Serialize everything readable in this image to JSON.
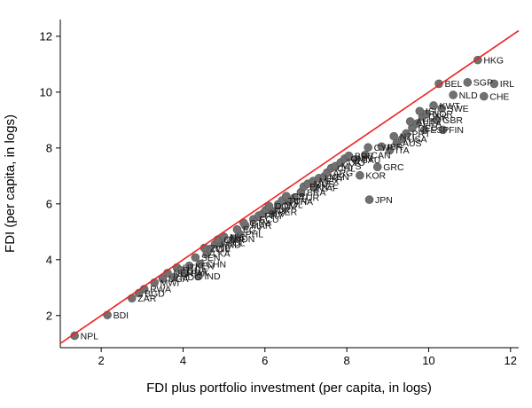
{
  "chart_data": {
    "type": "scatter",
    "title": "",
    "xlabel": "FDI plus portfolio investment (per capita, in logs)",
    "ylabel": "FDI (per capita, in logs)",
    "xlim": [
      1,
      12.2
    ],
    "ylim": [
      0.85,
      12.6
    ],
    "xticks": [
      2,
      4,
      6,
      8,
      10,
      12
    ],
    "yticks": [
      2,
      4,
      6,
      8,
      10,
      12
    ],
    "grid": false,
    "legend": "none",
    "identity_line": {
      "from": 1,
      "to": 12.2,
      "color": "#ee2222"
    },
    "point_color": "#707070",
    "point_stroke": "#575757",
    "points": [
      {
        "code": "NPL",
        "x": 1.35,
        "y": 1.28
      },
      {
        "code": "BDI",
        "x": 2.15,
        "y": 2.02
      },
      {
        "code": "ZAR",
        "x": 2.75,
        "y": 2.62
      },
      {
        "code": "BGD",
        "x": 2.92,
        "y": 2.8
      },
      {
        "code": "RWA",
        "x": 3.05,
        "y": 2.95
      },
      {
        "code": "MWI",
        "x": 3.3,
        "y": 3.18
      },
      {
        "code": "UGA",
        "x": 3.5,
        "y": 3.32
      },
      {
        "code": "NER",
        "x": 3.62,
        "y": 3.52
      },
      {
        "code": "MDG",
        "x": 3.78,
        "y": 3.38
      },
      {
        "code": "HTI",
        "x": 3.85,
        "y": 3.72
      },
      {
        "code": "GHA",
        "x": 3.95,
        "y": 3.62
      },
      {
        "code": "PAK",
        "x": 4.05,
        "y": 3.52
      },
      {
        "code": "KEN",
        "x": 4.15,
        "y": 3.78
      },
      {
        "code": "IND",
        "x": 4.38,
        "y": 3.42
      },
      {
        "code": "CHN",
        "x": 4.42,
        "y": 3.85
      },
      {
        "code": "SEN",
        "x": 4.3,
        "y": 4.08
      },
      {
        "code": "LKA",
        "x": 4.58,
        "y": 4.22
      },
      {
        "code": "CIV",
        "x": 4.65,
        "y": 4.38
      },
      {
        "code": "ZWE",
        "x": 4.52,
        "y": 4.42
      },
      {
        "code": "HND",
        "x": 4.78,
        "y": 4.55
      },
      {
        "code": "BOL",
        "x": 4.92,
        "y": 4.6
      },
      {
        "code": "CMR",
        "x": 4.85,
        "y": 4.72
      },
      {
        "code": "NIC",
        "x": 5.0,
        "y": 4.82
      },
      {
        "code": "IDN",
        "x": 5.22,
        "y": 4.75
      },
      {
        "code": "PHL",
        "x": 5.38,
        "y": 4.92
      },
      {
        "code": "EGY",
        "x": 5.32,
        "y": 5.08
      },
      {
        "code": "MAR",
        "x": 5.52,
        "y": 5.22
      },
      {
        "code": "GTM",
        "x": 5.48,
        "y": 5.32
      },
      {
        "code": "ECU",
        "x": 5.72,
        "y": 5.45
      },
      {
        "code": "PRY",
        "x": 5.85,
        "y": 5.58
      },
      {
        "code": "SLV",
        "x": 5.95,
        "y": 5.65
      },
      {
        "code": "JOR",
        "x": 6.02,
        "y": 5.78
      },
      {
        "code": "PER",
        "x": 6.18,
        "y": 5.72
      },
      {
        "code": "DOM",
        "x": 6.1,
        "y": 5.92
      },
      {
        "code": "COL",
        "x": 6.32,
        "y": 5.98
      },
      {
        "code": "TUN",
        "x": 6.42,
        "y": 6.12
      },
      {
        "code": "THA",
        "x": 6.58,
        "y": 6.08
      },
      {
        "code": "CRI",
        "x": 6.52,
        "y": 6.28
      },
      {
        "code": "TUR",
        "x": 6.72,
        "y": 6.22
      },
      {
        "code": "BRA",
        "x": 6.88,
        "y": 6.42
      },
      {
        "code": "PAN",
        "x": 6.95,
        "y": 6.62
      },
      {
        "code": "MUS",
        "x": 7.05,
        "y": 6.72
      },
      {
        "code": "ZAF",
        "x": 7.22,
        "y": 6.58
      },
      {
        "code": "MEX",
        "x": 7.18,
        "y": 6.82
      },
      {
        "code": "URY",
        "x": 7.32,
        "y": 6.92
      },
      {
        "code": "VEN",
        "x": 7.45,
        "y": 6.98
      },
      {
        "code": "ARG",
        "x": 7.52,
        "y": 7.12
      },
      {
        "code": "CHL",
        "x": 7.62,
        "y": 7.28
      },
      {
        "code": "MYS",
        "x": 7.72,
        "y": 7.35
      },
      {
        "code": "TTO",
        "x": 7.85,
        "y": 7.48
      },
      {
        "code": "OMN",
        "x": 7.95,
        "y": 7.62
      },
      {
        "code": "BRB",
        "x": 8.05,
        "y": 7.72
      },
      {
        "code": "KOR",
        "x": 8.32,
        "y": 7.02
      },
      {
        "code": "SAU",
        "x": 8.22,
        "y": 7.58
      },
      {
        "code": "JPN",
        "x": 8.55,
        "y": 6.15
      },
      {
        "code": "CAN",
        "x": 8.45,
        "y": 7.75
      },
      {
        "code": "GRC",
        "x": 8.75,
        "y": 7.32
      },
      {
        "code": "CYP",
        "x": 8.52,
        "y": 8.02
      },
      {
        "code": "ISR",
        "x": 8.85,
        "y": 8.05
      },
      {
        "code": "ITA",
        "x": 9.05,
        "y": 7.92
      },
      {
        "code": "AUS",
        "x": 9.22,
        "y": 8.18
      },
      {
        "code": "USA",
        "x": 9.35,
        "y": 8.32
      },
      {
        "code": "NZL",
        "x": 9.15,
        "y": 8.42
      },
      {
        "code": "PRT",
        "x": 9.45,
        "y": 8.52
      },
      {
        "code": "DEU",
        "x": 9.6,
        "y": 8.72
      },
      {
        "code": "ESP",
        "x": 9.9,
        "y": 8.65
      },
      {
        "code": "FRA",
        "x": 9.72,
        "y": 8.88
      },
      {
        "code": "AUT",
        "x": 9.55,
        "y": 8.95
      },
      {
        "code": "FIN",
        "x": 10.35,
        "y": 8.65
      },
      {
        "code": "DNK",
        "x": 9.85,
        "y": 9.12
      },
      {
        "code": "GBR",
        "x": 10.2,
        "y": 9.0
      },
      {
        "code": "NOR",
        "x": 9.95,
        "y": 9.22
      },
      {
        "code": "ISL",
        "x": 9.78,
        "y": 9.32
      },
      {
        "code": "SWE",
        "x": 10.32,
        "y": 9.42
      },
      {
        "code": "KWT",
        "x": 10.12,
        "y": 9.52
      },
      {
        "code": "NLD",
        "x": 10.6,
        "y": 9.9
      },
      {
        "code": "CHE",
        "x": 11.35,
        "y": 9.85
      },
      {
        "code": "BEL",
        "x": 10.25,
        "y": 10.3
      },
      {
        "code": "SGP",
        "x": 10.95,
        "y": 10.35
      },
      {
        "code": "IRL",
        "x": 11.6,
        "y": 10.3
      },
      {
        "code": "HKG",
        "x": 11.2,
        "y": 11.15
      }
    ]
  }
}
